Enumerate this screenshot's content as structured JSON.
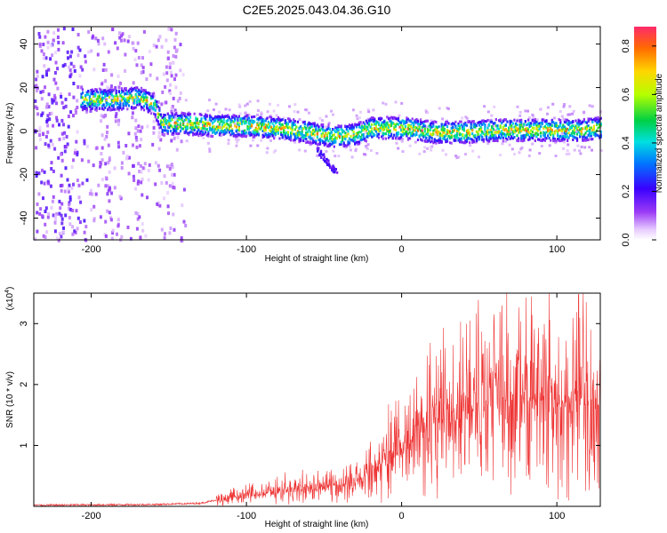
{
  "figure_title": "C2E5.2025.043.04.36.G10",
  "chart_data": [
    {
      "type": "heatmap",
      "xlabel": "Height of straight line (km)",
      "ylabel": "Frequency (Hz)",
      "xlim": [
        -237,
        128
      ],
      "ylim": [
        -50,
        48
      ],
      "xticks": [
        -200,
        -100,
        0,
        100
      ],
      "yticks": [
        -40,
        -20,
        0,
        20,
        40
      ],
      "colorbar": {
        "label": "Normalized spectral amplitude",
        "range": [
          0.0,
          0.88
        ],
        "ticks": [
          0.0,
          0.2,
          0.4,
          0.6,
          0.8
        ]
      },
      "ridge": [
        {
          "x": -207,
          "y": 15
        },
        {
          "x": -185,
          "y": 15
        },
        {
          "x": -170,
          "y": 16
        },
        {
          "x": -160,
          "y": 13
        },
        {
          "x": -155,
          "y": 4
        },
        {
          "x": -140,
          "y": 4
        },
        {
          "x": -120,
          "y": 3
        },
        {
          "x": -100,
          "y": 3
        },
        {
          "x": -80,
          "y": 2
        },
        {
          "x": -60,
          "y": 0
        },
        {
          "x": -45,
          "y": -2
        },
        {
          "x": -30,
          "y": -1
        },
        {
          "x": -20,
          "y": 2
        },
        {
          "x": 0,
          "y": 2
        },
        {
          "x": 20,
          "y": 0
        },
        {
          "x": 40,
          "y": 0
        },
        {
          "x": 60,
          "y": 1
        },
        {
          "x": 80,
          "y": 1
        },
        {
          "x": 100,
          "y": 1
        },
        {
          "x": 115,
          "y": 1
        },
        {
          "x": 128,
          "y": 2
        }
      ],
      "secondary_branch": {
        "x": [
          -55,
          -42
        ],
        "y": [
          -8,
          -19
        ]
      }
    },
    {
      "type": "line",
      "xlabel": "Height of straight line (km)",
      "ylabel": "SNR (10 * v/v)",
      "yscale_note": "(x10^4)",
      "xlim": [
        -237,
        128
      ],
      "ylim": [
        0,
        3.5
      ],
      "xticks": [
        -200,
        -100,
        0,
        100
      ],
      "yticks": [
        1,
        2,
        3
      ],
      "series": [
        {
          "color": "#ee3333",
          "envelope": [
            {
              "x": -237,
              "y": 0.02
            },
            {
              "x": -160,
              "y": 0.03
            },
            {
              "x": -130,
              "y": 0.05
            },
            {
              "x": -110,
              "y": 0.15
            },
            {
              "x": -90,
              "y": 0.2
            },
            {
              "x": -70,
              "y": 0.28
            },
            {
              "x": -50,
              "y": 0.32
            },
            {
              "x": -30,
              "y": 0.4
            },
            {
              "x": -15,
              "y": 0.65
            },
            {
              "x": 0,
              "y": 1.0
            },
            {
              "x": 20,
              "y": 1.35
            },
            {
              "x": 40,
              "y": 1.55
            },
            {
              "x": 60,
              "y": 1.7
            },
            {
              "x": 80,
              "y": 1.8
            },
            {
              "x": 100,
              "y": 1.7
            },
            {
              "x": 128,
              "y": 1.65
            }
          ],
          "peak": {
            "x": 114,
            "y": 3.48
          }
        }
      ]
    }
  ]
}
